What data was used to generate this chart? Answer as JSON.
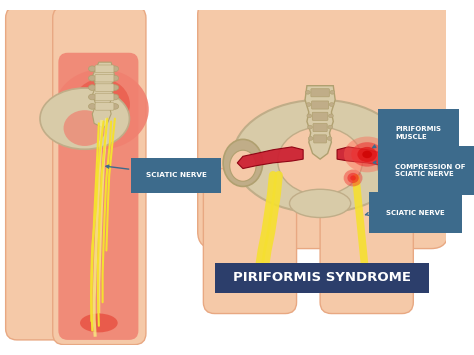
{
  "background_color": "#ffffff",
  "skin_color": "#f5c9a8",
  "skin_dark": "#e8a882",
  "skin_mid": "#f0b088",
  "red_bright": "#e8322a",
  "red_mid": "#e85040",
  "red_light": "#f08070",
  "bone_color": "#d8cba8",
  "bone_dark": "#c0ad88",
  "bone_outline": "#b0a070",
  "nerve_yellow": "#f5e030",
  "nerve_light": "#f8ee80",
  "muscle_red": "#cc2233",
  "muscle_light": "#e04050",
  "title": "PIRIFORMIS SYNDROME",
  "title_color": "#2c3e6b",
  "title_bg": "#2c3e6b",
  "label_bg": "#3d6b8c",
  "label_text": "#ffffff",
  "label1_left": "SCIATIC NERVE",
  "label1_right": "PIRIFORMIS\nMUSCLE",
  "label2_right": "COMPRESSION OF\nSCIATIC NERVE",
  "label3_right": "SCIATIC NERVE"
}
